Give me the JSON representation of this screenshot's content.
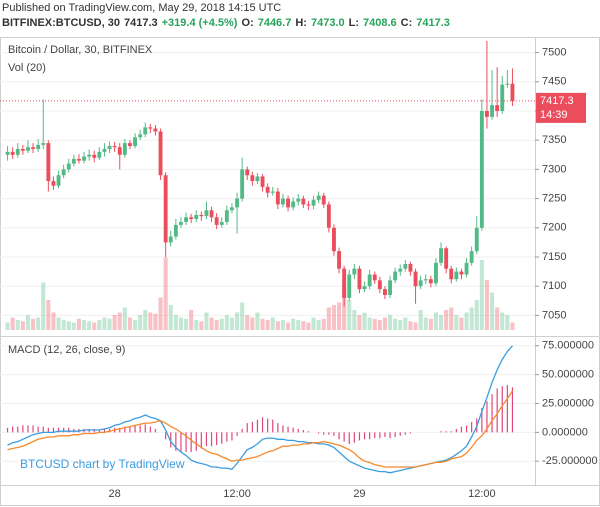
{
  "header": {
    "published": "Published on TradingView.com, May 29, 2018 14:15 UTC",
    "symbol": "BITFINEX:BTCUSD, 30",
    "change": "+319.4 (+4.5%)",
    "ohlc": [
      {
        "label": "O:",
        "value": "7446.7"
      },
      {
        "label": "H:",
        "value": "7473.0"
      },
      {
        "label": "L:",
        "value": "7408.6"
      },
      {
        "label": "C:",
        "value": "7417.3"
      }
    ]
  },
  "chart_data": {
    "type": "candlestick",
    "title": "Bitcoin / Dollar, 30, BITFINEX",
    "volume_title": "Vol (20)",
    "watermark": "BTCUSD chart by TradingView",
    "countdown": "14:39",
    "up_color": "#53b987",
    "down_color": "#eb4d5c",
    "grid": true,
    "categories": [
      null,
      null,
      null,
      null,
      null,
      null,
      null,
      null,
      null,
      null,
      null,
      null,
      null,
      null,
      null,
      null,
      null,
      null,
      null,
      null,
      null,
      "28",
      null,
      null,
      null,
      null,
      null,
      null,
      null,
      null,
      null,
      null,
      null,
      null,
      null,
      null,
      null,
      null,
      null,
      null,
      null,
      null,
      null,
      null,
      null,
      "12:00",
      null,
      null,
      null,
      null,
      null,
      null,
      null,
      null,
      null,
      null,
      null,
      null,
      null,
      null,
      null,
      null,
      null,
      null,
      null,
      null,
      null,
      null,
      null,
      "29",
      null,
      null,
      null,
      null,
      null,
      null,
      null,
      null,
      null,
      null,
      null,
      null,
      null,
      null,
      null,
      null,
      null,
      null,
      null,
      null,
      null,
      null,
      null,
      "12:00",
      null,
      null,
      null,
      null,
      null,
      null
    ],
    "open": [
      7325,
      7330,
      7325,
      7335,
      7332,
      7338,
      7335,
      7342,
      7345,
      7280,
      7272,
      7290,
      7300,
      7310,
      7318,
      7315,
      7322,
      7325,
      7320,
      7330,
      7335,
      7340,
      7338,
      7325,
      7345,
      7340,
      7355,
      7360,
      7372,
      7370,
      7365,
      7290,
      7175,
      7185,
      7205,
      7210,
      7218,
      7215,
      7222,
      7220,
      7230,
      7218,
      7205,
      7210,
      7230,
      7235,
      7250,
      7300,
      7290,
      7280,
      7288,
      7270,
      7260,
      7262,
      7240,
      7250,
      7235,
      7245,
      7250,
      7240,
      7238,
      7248,
      7255,
      7240,
      7200,
      7160,
      7130,
      7080,
      7120,
      7130,
      7095,
      7100,
      7120,
      7110,
      7095,
      7085,
      7110,
      7125,
      7130,
      7138,
      7125,
      7100,
      7110,
      7112,
      7105,
      7140,
      7165,
      7130,
      7112,
      7125,
      7120,
      7140,
      7160,
      7200,
      7400,
      7390,
      7410,
      7400,
      7445,
      7446.7
    ],
    "high": [
      7340,
      7338,
      7345,
      7342,
      7350,
      7345,
      7352,
      7420,
      7350,
      7288,
      7298,
      7308,
      7318,
      7325,
      7326,
      7330,
      7334,
      7332,
      7338,
      7345,
      7348,
      7347,
      7345,
      7352,
      7350,
      7362,
      7368,
      7380,
      7378,
      7376,
      7370,
      7295,
      7195,
      7215,
      7218,
      7226,
      7224,
      7230,
      7228,
      7245,
      7236,
      7225,
      7218,
      7238,
      7242,
      7260,
      7320,
      7305,
      7296,
      7294,
      7292,
      7276,
      7270,
      7268,
      7258,
      7255,
      7252,
      7258,
      7255,
      7246,
      7255,
      7262,
      7260,
      7245,
      7206,
      7166,
      7135,
      7128,
      7138,
      7135,
      7108,
      7128,
      7125,
      7116,
      7100,
      7118,
      7132,
      7137,
      7145,
      7142,
      7130,
      7118,
      7120,
      7118,
      7148,
      7175,
      7168,
      7135,
      7132,
      7130,
      7148,
      7168,
      7220,
      7420,
      7520,
      7470,
      7475,
      7460,
      7470,
      7473
    ],
    "low": [
      7315,
      7318,
      7320,
      7325,
      7328,
      7328,
      7330,
      7335,
      7262,
      7265,
      7268,
      7285,
      7295,
      7305,
      7310,
      7310,
      7315,
      7312,
      7316,
      7322,
      7328,
      7330,
      7300,
      7320,
      7335,
      7336,
      7350,
      7355,
      7362,
      7358,
      7282,
      7150,
      7168,
      7180,
      7200,
      7205,
      7208,
      7210,
      7212,
      7215,
      7210,
      7198,
      7200,
      7205,
      7225,
      7190,
      7245,
      7282,
      7272,
      7275,
      7262,
      7252,
      7255,
      7232,
      7235,
      7228,
      7230,
      7238,
      7234,
      7230,
      7232,
      7242,
      7234,
      7192,
      7152,
      7122,
      7065,
      7075,
      7112,
      7088,
      7090,
      7095,
      7104,
      7088,
      7078,
      7080,
      7105,
      7118,
      7125,
      7118,
      7070,
      7095,
      7104,
      7098,
      7100,
      7135,
      7122,
      7105,
      7108,
      7112,
      7115,
      7135,
      7155,
      7195,
      7370,
      7385,
      7390,
      7395,
      7440,
      7408.6
    ],
    "close": [
      7330,
      7325,
      7335,
      7332,
      7338,
      7335,
      7342,
      7345,
      7280,
      7272,
      7290,
      7300,
      7310,
      7318,
      7315,
      7322,
      7325,
      7320,
      7330,
      7335,
      7340,
      7338,
      7325,
      7345,
      7340,
      7355,
      7360,
      7372,
      7370,
      7365,
      7290,
      7175,
      7185,
      7205,
      7210,
      7218,
      7215,
      7222,
      7220,
      7230,
      7218,
      7205,
      7210,
      7230,
      7235,
      7250,
      7300,
      7290,
      7280,
      7288,
      7270,
      7260,
      7262,
      7240,
      7250,
      7235,
      7245,
      7250,
      7240,
      7238,
      7248,
      7255,
      7240,
      7200,
      7160,
      7130,
      7080,
      7120,
      7130,
      7095,
      7100,
      7120,
      7110,
      7095,
      7085,
      7110,
      7125,
      7130,
      7138,
      7125,
      7100,
      7110,
      7112,
      7105,
      7140,
      7165,
      7130,
      7112,
      7125,
      7120,
      7140,
      7160,
      7200,
      7400,
      7390,
      7410,
      7400,
      7445,
      7446.7,
      7417.3
    ],
    "volume": [
      300,
      500,
      400,
      350,
      600,
      450,
      500,
      1900,
      1200,
      700,
      500,
      400,
      350,
      300,
      450,
      400,
      350,
      300,
      400,
      500,
      450,
      600,
      700,
      900,
      500,
      400,
      600,
      800,
      700,
      650,
      1300,
      2900,
      1000,
      600,
      500,
      450,
      800,
      400,
      350,
      700,
      500,
      400,
      450,
      600,
      500,
      700,
      1100,
      600,
      500,
      700,
      450,
      400,
      500,
      350,
      400,
      300,
      450,
      400,
      350,
      300,
      500,
      400,
      450,
      900,
      1000,
      1100,
      1700,
      1200,
      800,
      600,
      700,
      500,
      450,
      400,
      500,
      600,
      450,
      400,
      500,
      350,
      300,
      800,
      500,
      450,
      700,
      600,
      800,
      900,
      600,
      500,
      700,
      900,
      1200,
      2800,
      2000,
      1500,
      900,
      700,
      600,
      300
    ],
    "volume_ylim": [
      0,
      3000
    ],
    "ylim": [
      7025,
      7525
    ],
    "yticks": [
      7050,
      7100,
      7150,
      7200,
      7250,
      7300,
      7350,
      7400,
      7450,
      7500
    ],
    "macd": {
      "title": "MACD (12, 26, close, 9)",
      "ylim": [
        -43,
        80
      ],
      "yticks": [
        {
          "value": 75,
          "label": "75.000000"
        },
        {
          "value": 50,
          "label": "50.000000"
        },
        {
          "value": 25,
          "label": "25.000000"
        },
        {
          "value": 0,
          "label": "0.000000"
        },
        {
          "value": -25,
          "label": "-25.000000"
        }
      ],
      "macd_line": {
        "color": "#3a9de0",
        "values": [
          -11,
          -9,
          -8,
          -6,
          -4,
          -2,
          -1,
          0,
          0,
          0,
          1,
          1,
          1,
          1,
          1,
          2,
          2,
          2,
          2,
          3,
          4,
          6,
          7,
          9,
          10,
          12,
          13,
          15,
          13,
          12,
          10,
          2,
          -8,
          -13,
          -17,
          -20,
          -24,
          -26,
          -27,
          -28,
          -30,
          -30,
          -31,
          -31,
          -32,
          -27,
          -21,
          -15,
          -13,
          -10,
          -6,
          -5,
          -5,
          -6,
          -6,
          -7,
          -7,
          -8,
          -8,
          -9,
          -9,
          -10,
          -10,
          -11,
          -13,
          -17,
          -21,
          -25,
          -27,
          -29,
          -31,
          -32,
          -33,
          -34,
          -34,
          -35,
          -34,
          -33,
          -32,
          -31,
          -30,
          -29,
          -28,
          -27,
          -26,
          -25,
          -24,
          -22,
          -19,
          -16,
          -12,
          -4,
          5,
          18,
          30,
          43,
          54,
          63,
          70,
          75
        ]
      },
      "signal_line": {
        "color": "#f5892d",
        "values": [
          -15,
          -14,
          -13,
          -12,
          -10,
          -8,
          -6,
          -5,
          -4,
          -4,
          -3,
          -3,
          -3,
          -2,
          -2,
          -1,
          -1,
          -1,
          0,
          0,
          1,
          2,
          3,
          4,
          5,
          6,
          7,
          8,
          8,
          9,
          10,
          8,
          5,
          3,
          0,
          -3,
          -7,
          -10,
          -13,
          -16,
          -18,
          -19,
          -21,
          -23,
          -25,
          -24,
          -24,
          -23,
          -22,
          -21,
          -19,
          -17,
          -16,
          -14,
          -12,
          -12,
          -11,
          -11,
          -10,
          -10,
          -9,
          -9,
          -8,
          -9,
          -10,
          -11,
          -13,
          -15,
          -18,
          -22,
          -25,
          -26,
          -28,
          -29,
          -30,
          -30,
          -30,
          -30,
          -30,
          -30,
          -30,
          -29,
          -28,
          -27,
          -26,
          -26,
          -25,
          -23,
          -22,
          -21,
          -18,
          -13,
          -7,
          -3,
          3,
          10,
          16,
          23,
          29,
          36
        ]
      },
      "histogram": {
        "color": "#e0457b",
        "values": [
          4,
          5,
          5,
          6,
          6,
          6,
          5,
          5,
          4,
          4,
          4,
          4,
          4,
          3,
          3,
          3,
          3,
          3,
          2,
          3,
          3,
          4,
          4,
          5,
          5,
          6,
          6,
          7,
          5,
          3,
          0,
          -6,
          -13,
          -16,
          -17,
          -17,
          -17,
          -16,
          -14,
          -12,
          -12,
          -11,
          -10,
          -8,
          -7,
          -3,
          3,
          8,
          9,
          11,
          13,
          12,
          11,
          8,
          6,
          5,
          4,
          3,
          2,
          1,
          0,
          -1,
          -2,
          -2,
          -3,
          -6,
          -8,
          -10,
          -9,
          -7,
          -6,
          -6,
          -5,
          -5,
          -4,
          -5,
          -4,
          -3,
          -2,
          -1,
          0,
          0,
          0,
          0,
          0,
          1,
          1,
          1,
          3,
          5,
          6,
          9,
          12,
          21,
          27,
          33,
          38,
          40,
          41,
          39
        ]
      }
    }
  }
}
